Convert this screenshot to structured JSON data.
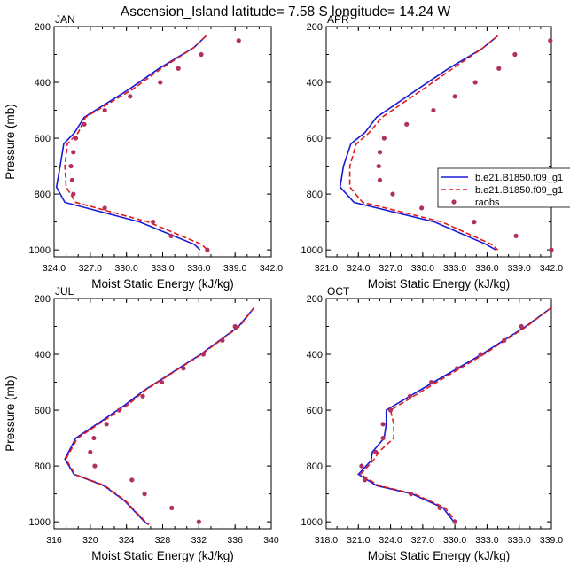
{
  "figure": {
    "title": "Ascension_Island  latitude= 7.58 S longitude= 14.24 W"
  },
  "legend": {
    "placement": "right-edge, middle of upper-right panel",
    "entries": [
      {
        "label": "b.e21.B1850.f09_g1",
        "style": "solid",
        "color": "#1a1ad6"
      },
      {
        "label": "b.e21.B1850.f09_g1",
        "style": "dashed",
        "color": "#e21a1a"
      },
      {
        "label": "raobs",
        "style": "dot",
        "color": "#b03060"
      }
    ]
  },
  "chart_data": [
    {
      "type": "line",
      "panel": "JAN",
      "xlabel": "Moist Static Energy (kJ/kg)",
      "ylabel": "Pressure (mb)",
      "xlim": [
        324,
        342
      ],
      "ylim": [
        1025,
        200
      ],
      "xticks": [
        324,
        327,
        330,
        333,
        336,
        339,
        342
      ],
      "xtick_labels": [
        "324.0",
        "327.0",
        "330.0",
        "333.0",
        "336.0",
        "339.0",
        "342.0"
      ],
      "yticks": [
        200,
        400,
        600,
        800,
        1000
      ],
      "ytick_labels": [
        "200",
        "400",
        "600",
        "800",
        "1000"
      ],
      "series": [
        {
          "style": "solid",
          "color": "#1a1ad6",
          "pressure": [
            233,
            275,
            350,
            425,
            525,
            580,
            620,
            700,
            775,
            830,
            900,
            980,
            1000
          ],
          "mse": [
            336.6,
            335.6,
            332.7,
            330.2,
            326.5,
            325.7,
            324.8,
            324.5,
            324.2,
            324.9,
            331.1,
            335.6,
            336.1
          ]
        },
        {
          "style": "dashed",
          "color": "#e21a1a",
          "pressure": [
            233,
            275,
            350,
            425,
            525,
            580,
            620,
            700,
            775,
            830,
            900,
            980,
            1000
          ],
          "mse": [
            336.6,
            335.6,
            332.9,
            330.5,
            326.6,
            326.0,
            325.1,
            324.9,
            325.0,
            325.8,
            331.8,
            336.2,
            336.7
          ]
        },
        {
          "style": "dot",
          "color": "#b03060",
          "pressure": [
            250,
            300,
            350,
            400,
            450,
            500,
            550,
            600,
            650,
            700,
            750,
            800,
            850,
            900,
            950,
            1000
          ],
          "mse": [
            339.3,
            336.2,
            334.3,
            332.8,
            330.3,
            328.2,
            326.5,
            325.8,
            325.6,
            325.4,
            325.5,
            325.6,
            328.2,
            332.2,
            333.7,
            336.7
          ]
        }
      ]
    },
    {
      "type": "line",
      "panel": "APR",
      "xlabel": "Moist Static Energy (kJ/kg)",
      "ylabel": "",
      "xlim": [
        321,
        342
      ],
      "ylim": [
        1025,
        200
      ],
      "xticks": [
        321,
        324,
        327,
        330,
        333,
        336,
        339,
        342
      ],
      "xtick_labels": [
        "321.0",
        "324.0",
        "327.0",
        "330.0",
        "333.0",
        "336.0",
        "339.0",
        "342.0"
      ],
      "yticks": [
        200,
        400,
        600,
        800,
        1000
      ],
      "ytick_labels": [
        "200",
        "400",
        "600",
        "800",
        "1000"
      ],
      "series": [
        {
          "style": "solid",
          "color": "#1a1ad6",
          "pressure": [
            233,
            280,
            350,
            425,
            525,
            580,
            620,
            700,
            775,
            830,
            900,
            980,
            1000
          ],
          "mse": [
            337.0,
            335.5,
            332.4,
            329.5,
            325.7,
            324.6,
            323.3,
            322.6,
            322.3,
            323.6,
            331.1,
            335.9,
            336.8
          ]
        },
        {
          "style": "dashed",
          "color": "#e21a1a",
          "pressure": [
            233,
            280,
            350,
            425,
            525,
            580,
            620,
            700,
            775,
            830,
            900,
            980,
            1000
          ],
          "mse": [
            337.0,
            335.5,
            332.8,
            330.0,
            326.2,
            325.0,
            323.8,
            323.2,
            323.2,
            324.4,
            331.8,
            336.4,
            337.0
          ]
        },
        {
          "style": "dot",
          "color": "#b03060",
          "pressure": [
            250,
            300,
            350,
            400,
            450,
            500,
            550,
            600,
            650,
            700,
            750,
            800,
            850,
            900,
            950,
            1000
          ],
          "mse": [
            341.9,
            338.6,
            337.1,
            334.9,
            333.0,
            331.0,
            328.5,
            326.4,
            326.0,
            325.9,
            326.0,
            327.2,
            329.9,
            334.8,
            338.7,
            342.0
          ]
        }
      ]
    },
    {
      "type": "line",
      "panel": "JUL",
      "xlabel": "Moist Static Energy (kJ/kg)",
      "ylabel": "Pressure (mb)",
      "xlim": [
        316,
        340
      ],
      "ylim": [
        1025,
        200
      ],
      "xticks": [
        316,
        320,
        324,
        328,
        332,
        336,
        340
      ],
      "xtick_labels": [
        "316",
        "320",
        "324",
        "328",
        "332",
        "336",
        "340"
      ],
      "yticks": [
        200,
        400,
        600,
        800,
        1000
      ],
      "ytick_labels": [
        "200",
        "400",
        "600",
        "800",
        "1000"
      ],
      "series": [
        {
          "style": "solid",
          "color": "#1a1ad6",
          "pressure": [
            233,
            300,
            400,
            530,
            580,
            640,
            700,
            775,
            830,
            870,
            925,
            1000,
            1010
          ],
          "mse": [
            338.1,
            336.4,
            332.2,
            325.9,
            323.9,
            321.2,
            318.4,
            317.2,
            318.2,
            321.5,
            323.8,
            326.0,
            326.4
          ]
        },
        {
          "style": "dashed",
          "color": "#e21a1a",
          "pressure": [
            233,
            300,
            400,
            530,
            580,
            640,
            700,
            775,
            830,
            870,
            925,
            1000,
            1010
          ],
          "mse": [
            338.1,
            336.5,
            332.3,
            326.0,
            324.2,
            321.4,
            318.6,
            317.3,
            318.3,
            321.6,
            323.9,
            326.1,
            326.5
          ]
        },
        {
          "style": "dot",
          "color": "#b03060",
          "pressure": [
            300,
            350,
            400,
            450,
            500,
            550,
            600,
            650,
            700,
            750,
            800,
            850,
            900,
            950,
            1000
          ],
          "mse": [
            336.0,
            334.6,
            332.5,
            330.3,
            327.9,
            325.8,
            323.2,
            321.8,
            320.4,
            320.0,
            320.5,
            324.6,
            326.0,
            329.0,
            332.0
          ]
        }
      ]
    },
    {
      "type": "line",
      "panel": "OCT",
      "xlabel": "Moist Static Energy (kJ/kg)",
      "ylabel": "",
      "xlim": [
        318,
        339
      ],
      "ylim": [
        1025,
        200
      ],
      "xticks": [
        318,
        321,
        324,
        327,
        330,
        333,
        336,
        339
      ],
      "xtick_labels": [
        "318.0",
        "321.0",
        "324.0",
        "327.0",
        "330.0",
        "333.0",
        "336.0",
        "339.0"
      ],
      "yticks": [
        200,
        400,
        600,
        800,
        1000
      ],
      "ytick_labels": [
        "200",
        "400",
        "600",
        "800",
        "1000"
      ],
      "series": [
        {
          "style": "solid",
          "color": "#1a1ad6",
          "pressure": [
            233,
            300,
            400,
            500,
            600,
            650,
            700,
            750,
            780,
            830,
            870,
            900,
            950,
            1000
          ],
          "mse": [
            339.0,
            336.6,
            332.5,
            328.0,
            323.6,
            323.6,
            323.4,
            322.3,
            322.2,
            321.0,
            322.7,
            326.0,
            328.9,
            329.9
          ]
        },
        {
          "style": "dashed",
          "color": "#e21a1a",
          "pressure": [
            233,
            300,
            400,
            500,
            600,
            650,
            700,
            750,
            780,
            830,
            870,
            900,
            950,
            1000
          ],
          "mse": [
            339.0,
            336.7,
            332.7,
            328.3,
            324.0,
            324.3,
            324.3,
            322.9,
            322.4,
            321.2,
            322.9,
            326.2,
            329.1,
            330.1
          ]
        },
        {
          "style": "dot",
          "color": "#b03060",
          "pressure": [
            300,
            350,
            400,
            450,
            500,
            550,
            600,
            650,
            700,
            750,
            800,
            850,
            900,
            950,
            1000
          ],
          "mse": [
            336.2,
            334.6,
            332.4,
            330.2,
            327.8,
            325.8,
            324.0,
            323.3,
            323.3,
            322.6,
            321.3,
            321.6,
            325.9,
            328.6,
            330.0
          ]
        }
      ]
    }
  ]
}
